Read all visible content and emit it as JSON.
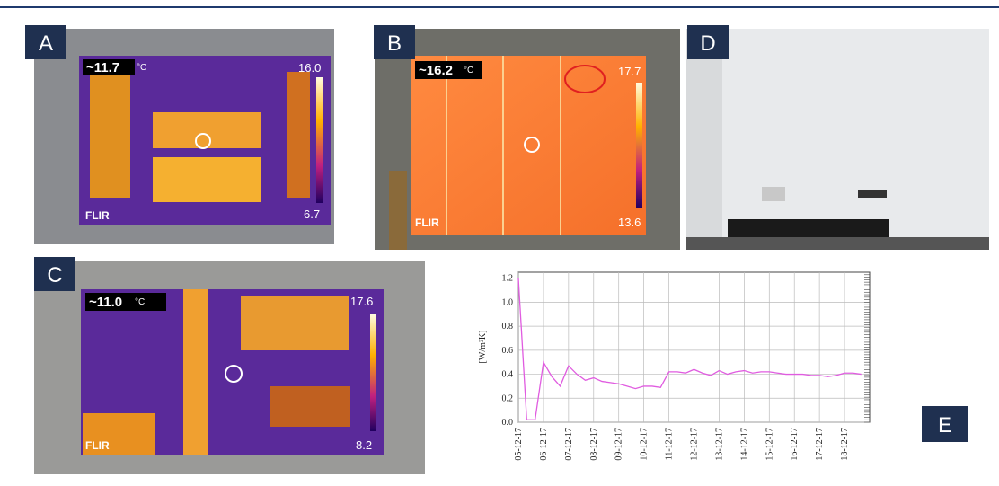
{
  "panels": [
    {
      "label": "A",
      "thermal": {
        "spot": "~11.7",
        "unit": "°C",
        "max": "16.0",
        "min": "6.7",
        "brand": "FLIR"
      }
    },
    {
      "label": "B",
      "thermal": {
        "spot": "~16.2",
        "unit": "°C",
        "max": "17.7",
        "min": "13.6",
        "brand": "FLIR"
      }
    },
    {
      "label": "C",
      "thermal": {
        "spot": "~11.0",
        "unit": "°C",
        "max": "17.6",
        "min": "8.2",
        "brand": "FLIR"
      }
    },
    {
      "label": "D"
    }
  ],
  "chart_data": {
    "type": "line",
    "panel_label": "E",
    "ylabel": "[W/m²K]",
    "x": [
      "05-12-17",
      null,
      null,
      "06-12-17",
      null,
      null,
      "07-12-17",
      null,
      null,
      "08-12-17",
      null,
      null,
      "09-12-17",
      null,
      null,
      "10-12-17",
      null,
      null,
      "11-12-17",
      null,
      null,
      "12-12-17",
      null,
      null,
      "13-12-17",
      null,
      null,
      "14-12-17",
      null,
      null,
      "15-12-17",
      null,
      null,
      "16-12-17",
      null,
      null,
      "17-12-17",
      null,
      null,
      "18-12-17",
      null,
      null
    ],
    "series": [
      {
        "color": "#e05ce0",
        "values": [
          1.2,
          0.02,
          0.02,
          0.5,
          0.38,
          0.3,
          0.47,
          0.4,
          0.35,
          0.37,
          0.34,
          0.33,
          0.32,
          0.3,
          0.28,
          0.3,
          0.3,
          0.29,
          0.42,
          0.42,
          0.41,
          0.44,
          0.41,
          0.39,
          0.43,
          0.4,
          0.42,
          0.43,
          0.41,
          0.42,
          0.42,
          0.41,
          0.4,
          0.4,
          0.4,
          0.39,
          0.39,
          0.38,
          0.39,
          0.41,
          0.41,
          0.4
        ]
      }
    ],
    "ylim": [
      0,
      1.25
    ],
    "yticks": [
      {
        "value": 0,
        "label": "0.0"
      },
      0.2,
      0.4,
      0.6,
      0.8,
      {
        "value": 1,
        "label": "1.0"
      },
      1.2
    ],
    "grid": true
  }
}
